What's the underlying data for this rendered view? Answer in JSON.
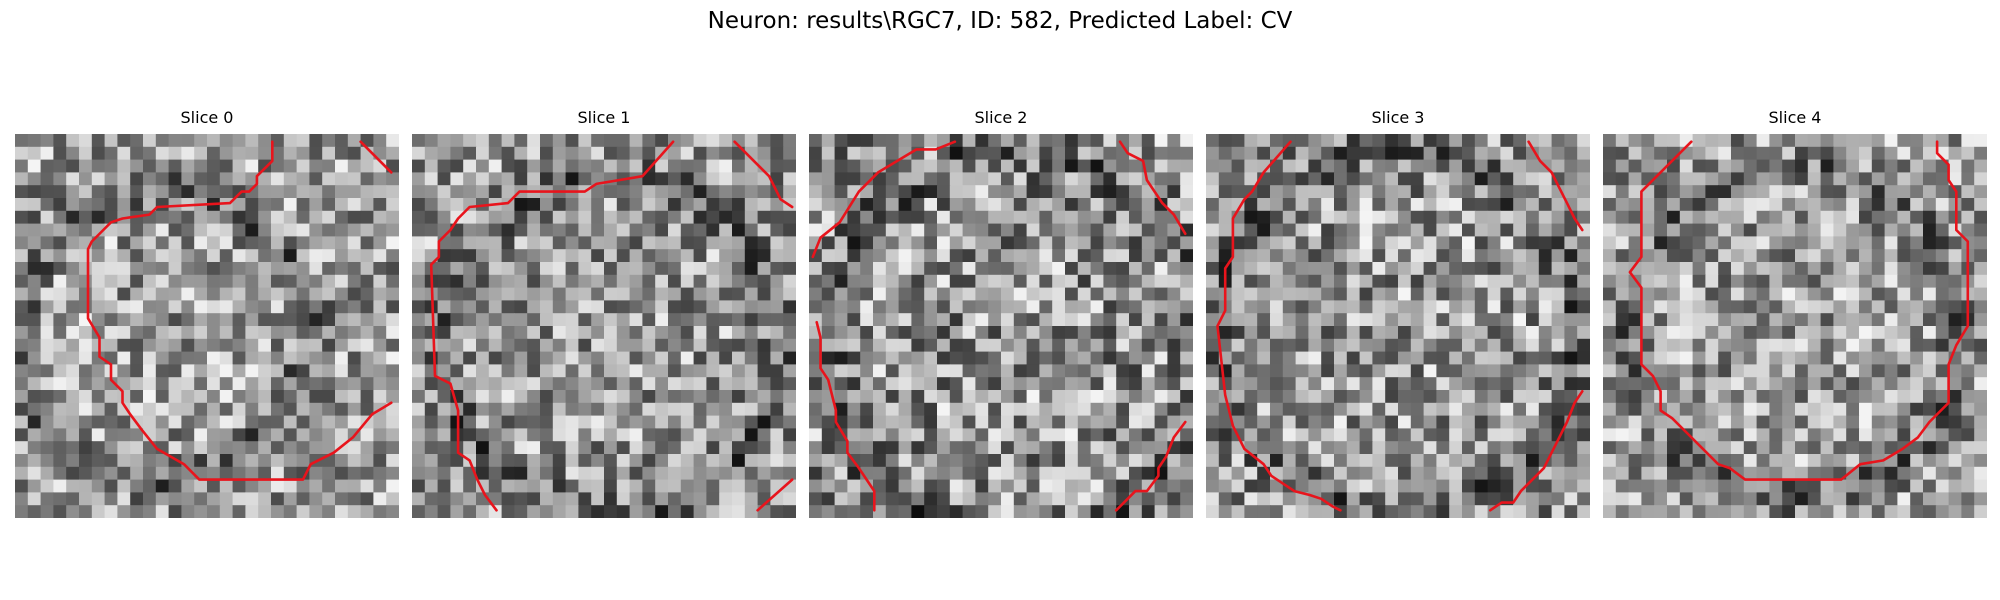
{
  "figure": {
    "title": "Neuron: results\\RGC7, ID: 582, Predicted Label: CV"
  },
  "colors": {
    "background": "#ffffff",
    "outline": "#e8141c",
    "colormap": "grayscale"
  },
  "slices": [
    {
      "title": "Slice 0",
      "image": {
        "grid": 30,
        "seed": 11,
        "baseline": 0.62,
        "spread": 0.34,
        "ring_darkening": 0.22,
        "center": [
          0.38,
          0.52
        ],
        "radius": 0.38
      },
      "outline": [
        [
          [
            0.67,
            0.02
          ],
          [
            0.67,
            0.07
          ],
          [
            0.63,
            0.11
          ],
          [
            0.63,
            0.13
          ],
          [
            0.61,
            0.15
          ],
          [
            0.59,
            0.15
          ],
          [
            0.56,
            0.18
          ],
          [
            0.37,
            0.19
          ],
          [
            0.35,
            0.21
          ],
          [
            0.28,
            0.22
          ],
          [
            0.25,
            0.23
          ],
          [
            0.23,
            0.25
          ],
          [
            0.2,
            0.28
          ],
          [
            0.19,
            0.3
          ],
          [
            0.19,
            0.48
          ],
          [
            0.22,
            0.53
          ],
          [
            0.22,
            0.58
          ],
          [
            0.25,
            0.6
          ],
          [
            0.25,
            0.64
          ],
          [
            0.28,
            0.67
          ],
          [
            0.28,
            0.7
          ],
          [
            0.3,
            0.73
          ],
          [
            0.33,
            0.77
          ],
          [
            0.37,
            0.82
          ],
          [
            0.44,
            0.86
          ],
          [
            0.48,
            0.9
          ],
          [
            0.75,
            0.9
          ],
          [
            0.77,
            0.86
          ],
          [
            0.83,
            0.83
          ],
          [
            0.88,
            0.79
          ],
          [
            0.93,
            0.73
          ],
          [
            0.98,
            0.7
          ]
        ],
        [
          [
            0.9,
            0.02
          ],
          [
            0.98,
            0.1
          ]
        ]
      ]
    },
    {
      "title": "Slice 1",
      "image": {
        "grid": 30,
        "seed": 23,
        "baseline": 0.6,
        "spread": 0.34,
        "ring_darkening": 0.2,
        "center": [
          0.52,
          0.55
        ],
        "radius": 0.44
      },
      "outline": [
        [
          [
            0.68,
            0.02
          ],
          [
            0.6,
            0.11
          ],
          [
            0.48,
            0.13
          ],
          [
            0.45,
            0.15
          ],
          [
            0.28,
            0.15
          ],
          [
            0.25,
            0.18
          ],
          [
            0.15,
            0.19
          ],
          [
            0.12,
            0.22
          ],
          [
            0.1,
            0.25
          ],
          [
            0.07,
            0.28
          ],
          [
            0.07,
            0.32
          ],
          [
            0.05,
            0.34
          ],
          [
            0.06,
            0.63
          ],
          [
            0.1,
            0.65
          ],
          [
            0.12,
            0.72
          ],
          [
            0.12,
            0.83
          ],
          [
            0.15,
            0.85
          ],
          [
            0.17,
            0.9
          ],
          [
            0.19,
            0.94
          ],
          [
            0.22,
            0.98
          ]
        ],
        [
          [
            0.84,
            0.02
          ],
          [
            0.93,
            0.11
          ],
          [
            0.96,
            0.17
          ],
          [
            0.99,
            0.19
          ]
        ],
        [
          [
            0.9,
            0.98
          ],
          [
            0.99,
            0.9
          ]
        ]
      ]
    },
    {
      "title": "Slice 2",
      "image": {
        "grid": 30,
        "seed": 37,
        "baseline": 0.58,
        "spread": 0.38,
        "ring_darkening": 0.18,
        "center": [
          0.55,
          0.55
        ],
        "radius": 0.5
      },
      "outline": [
        [
          [
            0.01,
            0.32
          ],
          [
            0.03,
            0.27
          ],
          [
            0.08,
            0.23
          ],
          [
            0.13,
            0.15
          ],
          [
            0.18,
            0.1
          ],
          [
            0.23,
            0.07
          ],
          [
            0.28,
            0.04
          ],
          [
            0.33,
            0.04
          ],
          [
            0.38,
            0.02
          ]
        ],
        [
          [
            0.81,
            0.02
          ],
          [
            0.83,
            0.05
          ],
          [
            0.87,
            0.07
          ],
          [
            0.88,
            0.12
          ],
          [
            0.9,
            0.15
          ],
          [
            0.92,
            0.18
          ],
          [
            0.95,
            0.21
          ],
          [
            0.98,
            0.26
          ]
        ],
        [
          [
            0.02,
            0.49
          ],
          [
            0.03,
            0.53
          ],
          [
            0.03,
            0.61
          ],
          [
            0.05,
            0.64
          ],
          [
            0.07,
            0.72
          ],
          [
            0.07,
            0.75
          ],
          [
            0.1,
            0.8
          ],
          [
            0.1,
            0.83
          ],
          [
            0.13,
            0.87
          ],
          [
            0.15,
            0.9
          ],
          [
            0.17,
            0.93
          ],
          [
            0.17,
            0.98
          ]
        ],
        [
          [
            0.8,
            0.98
          ],
          [
            0.85,
            0.93
          ],
          [
            0.88,
            0.93
          ],
          [
            0.91,
            0.89
          ],
          [
            0.91,
            0.87
          ],
          [
            0.93,
            0.84
          ],
          [
            0.95,
            0.79
          ],
          [
            0.98,
            0.75
          ]
        ]
      ]
    },
    {
      "title": "Slice 3",
      "image": {
        "grid": 30,
        "seed": 53,
        "baseline": 0.6,
        "spread": 0.36,
        "ring_darkening": 0.2,
        "center": [
          0.5,
          0.52
        ],
        "radius": 0.47
      },
      "outline": [
        [
          [
            0.22,
            0.02
          ],
          [
            0.15,
            0.1
          ],
          [
            0.12,
            0.15
          ],
          [
            0.1,
            0.17
          ],
          [
            0.07,
            0.22
          ],
          [
            0.07,
            0.32
          ],
          [
            0.05,
            0.35
          ],
          [
            0.05,
            0.46
          ],
          [
            0.03,
            0.5
          ],
          [
            0.05,
            0.68
          ],
          [
            0.07,
            0.76
          ],
          [
            0.1,
            0.82
          ],
          [
            0.15,
            0.86
          ],
          [
            0.17,
            0.89
          ],
          [
            0.2,
            0.91
          ],
          [
            0.23,
            0.93
          ],
          [
            0.27,
            0.94
          ],
          [
            0.3,
            0.95
          ],
          [
            0.33,
            0.97
          ],
          [
            0.35,
            0.98
          ]
        ],
        [
          [
            0.84,
            0.02
          ],
          [
            0.87,
            0.07
          ],
          [
            0.9,
            0.1
          ],
          [
            0.92,
            0.14
          ],
          [
            0.94,
            0.18
          ],
          [
            0.96,
            0.22
          ],
          [
            0.98,
            0.25
          ]
        ],
        [
          [
            0.74,
            0.98
          ],
          [
            0.77,
            0.96
          ],
          [
            0.8,
            0.96
          ],
          [
            0.82,
            0.93
          ],
          [
            0.85,
            0.9
          ],
          [
            0.88,
            0.87
          ],
          [
            0.9,
            0.83
          ],
          [
            0.92,
            0.79
          ],
          [
            0.94,
            0.75
          ],
          [
            0.96,
            0.7
          ],
          [
            0.98,
            0.67
          ]
        ]
      ]
    },
    {
      "title": "Slice 4",
      "image": {
        "grid": 30,
        "seed": 71,
        "baseline": 0.62,
        "spread": 0.34,
        "ring_darkening": 0.18,
        "center": [
          0.5,
          0.52
        ],
        "radius": 0.43
      },
      "outline": [
        [
          [
            0.23,
            0.02
          ],
          [
            0.17,
            0.08
          ],
          [
            0.13,
            0.12
          ],
          [
            0.1,
            0.15
          ],
          [
            0.1,
            0.32
          ],
          [
            0.07,
            0.36
          ],
          [
            0.1,
            0.4
          ],
          [
            0.1,
            0.6
          ],
          [
            0.13,
            0.63
          ],
          [
            0.15,
            0.67
          ],
          [
            0.15,
            0.72
          ],
          [
            0.18,
            0.74
          ],
          [
            0.22,
            0.78
          ],
          [
            0.27,
            0.83
          ],
          [
            0.3,
            0.86
          ],
          [
            0.33,
            0.87
          ],
          [
            0.37,
            0.9
          ],
          [
            0.62,
            0.9
          ],
          [
            0.67,
            0.86
          ],
          [
            0.73,
            0.85
          ],
          [
            0.78,
            0.82
          ],
          [
            0.82,
            0.79
          ],
          [
            0.85,
            0.75
          ],
          [
            0.88,
            0.72
          ],
          [
            0.9,
            0.7
          ],
          [
            0.9,
            0.6
          ],
          [
            0.92,
            0.55
          ],
          [
            0.95,
            0.5
          ],
          [
            0.95,
            0.28
          ],
          [
            0.92,
            0.25
          ],
          [
            0.92,
            0.15
          ],
          [
            0.9,
            0.12
          ],
          [
            0.9,
            0.08
          ],
          [
            0.87,
            0.05
          ],
          [
            0.87,
            0.02
          ]
        ]
      ]
    }
  ]
}
